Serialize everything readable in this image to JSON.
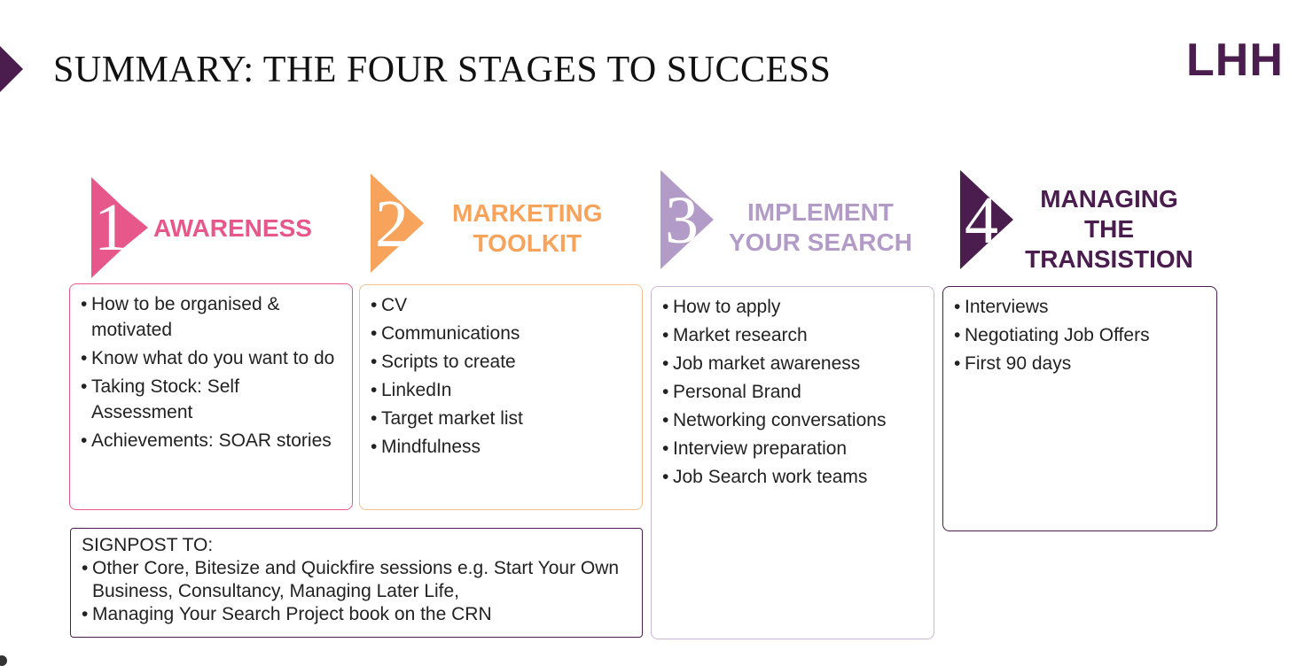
{
  "title": "SUMMARY: THE FOUR STAGES TO SUCCESS",
  "logo": "LHH",
  "colors": {
    "stage1": "#e8578a",
    "stage2": "#f7a35c",
    "stage3": "#b39bc8",
    "stage4": "#4a1d4e"
  },
  "stages": [
    {
      "number": "1",
      "title_lines": [
        "AWARENESS"
      ],
      "items": [
        "How to be organised & motivated",
        "Know what do you want to do",
        "Taking Stock: Self Assessment",
        "Achievements: SOAR stories"
      ]
    },
    {
      "number": "2",
      "title_lines": [
        "MARKETING",
        "TOOLKIT"
      ],
      "items": [
        "CV",
        "Communications",
        "Scripts to create",
        "LinkedIn",
        "Target market list",
        "Mindfulness"
      ]
    },
    {
      "number": "3",
      "title_lines": [
        "IMPLEMENT",
        "YOUR SEARCH"
      ],
      "items": [
        "How to apply",
        "Market research",
        "Job market awareness",
        "Personal Brand",
        "Networking conversations",
        "Interview preparation",
        "Job Search work teams"
      ]
    },
    {
      "number": "4",
      "title_lines": [
        "MANAGING",
        "THE",
        "TRANSISTION"
      ],
      "items": [
        "Interviews",
        "Negotiating Job Offers",
        "First 90 days"
      ]
    }
  ],
  "signpost": {
    "heading": "SIGNPOST TO:",
    "items": [
      "Other Core, Bitesize and Quickfire sessions e.g. Start Your Own Business, Consultancy, Managing Later Life,",
      "Managing Your Search Project book on the CRN"
    ]
  }
}
